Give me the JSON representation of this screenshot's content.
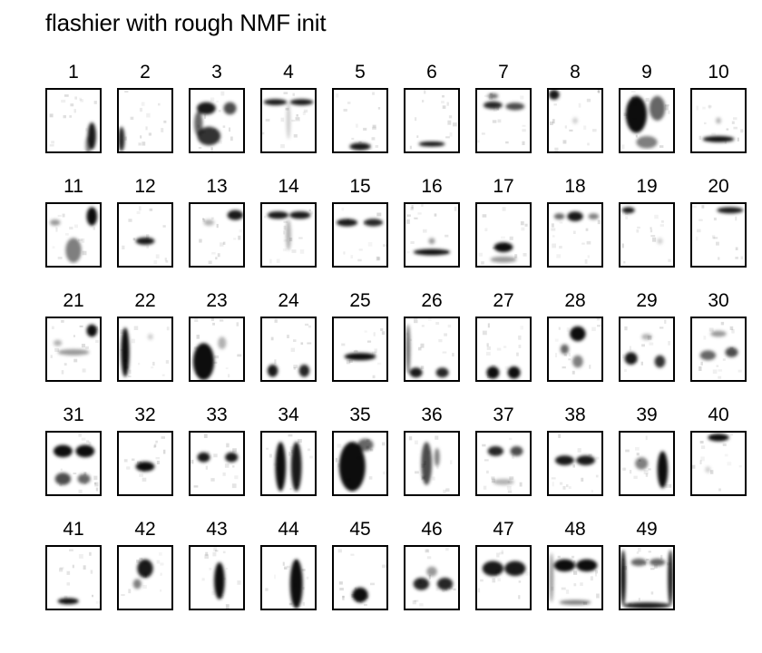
{
  "title": "flashier with rough NMF init",
  "chart_data": {
    "type": "heatmap",
    "title": "flashier with rough NMF init",
    "description_kind": "grid of factor image panels (face-like grayscale patterns)",
    "panel_labels": [
      "1",
      "2",
      "3",
      "4",
      "5",
      "6",
      "7",
      "8",
      "9",
      "10",
      "11",
      "12",
      "13",
      "14",
      "15",
      "16",
      "17",
      "18",
      "19",
      "20",
      "21",
      "22",
      "23",
      "24",
      "25",
      "26",
      "27",
      "28",
      "29",
      "30",
      "31",
      "32",
      "33",
      "34",
      "35",
      "36",
      "37",
      "38",
      "39",
      "40",
      "41",
      "42",
      "43",
      "44",
      "45",
      "46",
      "47",
      "48",
      "49"
    ],
    "grid": {
      "rows": 5,
      "columns": 10
    },
    "colormap": {
      "low": "#ffffff",
      "high": "#000000"
    },
    "panel_features": {
      "1": [
        [
          0.85,
          0.75,
          0.08,
          0.22,
          0.9
        ],
        [
          0.78,
          0.9,
          0.05,
          0.15,
          0.5
        ]
      ],
      "2": [
        [
          0.05,
          0.8,
          0.06,
          0.2,
          0.85
        ]
      ],
      "3": [
        [
          0.3,
          0.3,
          0.18,
          0.1,
          0.9
        ],
        [
          0.75,
          0.3,
          0.12,
          0.1,
          0.7
        ],
        [
          0.35,
          0.75,
          0.22,
          0.15,
          0.8
        ],
        [
          0.15,
          0.55,
          0.08,
          0.2,
          0.6
        ]
      ],
      "4": [
        [
          0.25,
          0.2,
          0.22,
          0.05,
          0.9
        ],
        [
          0.75,
          0.2,
          0.22,
          0.05,
          0.9
        ],
        [
          0.5,
          0.5,
          0.04,
          0.3,
          0.2
        ]
      ],
      "5": [
        [
          0.5,
          0.92,
          0.2,
          0.06,
          0.9
        ]
      ],
      "6": [
        [
          0.5,
          0.88,
          0.25,
          0.04,
          0.95
        ]
      ],
      "7": [
        [
          0.3,
          0.25,
          0.18,
          0.06,
          0.85
        ],
        [
          0.72,
          0.27,
          0.18,
          0.06,
          0.7
        ],
        [
          0.3,
          0.1,
          0.1,
          0.04,
          0.6
        ]
      ],
      "8": [
        [
          0.1,
          0.08,
          0.1,
          0.08,
          0.9
        ],
        [
          0.5,
          0.5,
          0.05,
          0.05,
          0.2
        ]
      ],
      "9": [
        [
          0.3,
          0.4,
          0.2,
          0.3,
          0.95
        ],
        [
          0.7,
          0.3,
          0.15,
          0.2,
          0.6
        ],
        [
          0.5,
          0.85,
          0.2,
          0.1,
          0.5
        ]
      ],
      "10": [
        [
          0.5,
          0.8,
          0.3,
          0.05,
          0.95
        ],
        [
          0.5,
          0.5,
          0.05,
          0.05,
          0.3
        ]
      ],
      "11": [
        [
          0.85,
          0.2,
          0.1,
          0.15,
          0.95
        ],
        [
          0.5,
          0.75,
          0.15,
          0.2,
          0.5
        ],
        [
          0.15,
          0.3,
          0.1,
          0.05,
          0.4
        ]
      ],
      "12": [
        [
          0.5,
          0.6,
          0.18,
          0.06,
          0.9
        ]
      ],
      "13": [
        [
          0.85,
          0.18,
          0.15,
          0.08,
          0.9
        ],
        [
          0.35,
          0.3,
          0.1,
          0.05,
          0.3
        ]
      ],
      "14": [
        [
          0.3,
          0.18,
          0.2,
          0.06,
          0.9
        ],
        [
          0.72,
          0.18,
          0.2,
          0.06,
          0.9
        ],
        [
          0.5,
          0.5,
          0.05,
          0.25,
          0.3
        ]
      ],
      "15": [
        [
          0.25,
          0.3,
          0.2,
          0.06,
          0.9
        ],
        [
          0.75,
          0.3,
          0.18,
          0.06,
          0.85
        ]
      ],
      "16": [
        [
          0.5,
          0.78,
          0.35,
          0.05,
          0.95
        ],
        [
          0.5,
          0.6,
          0.06,
          0.05,
          0.4
        ]
      ],
      "17": [
        [
          0.5,
          0.7,
          0.18,
          0.08,
          0.95
        ],
        [
          0.5,
          0.9,
          0.25,
          0.05,
          0.4
        ]
      ],
      "18": [
        [
          0.5,
          0.2,
          0.15,
          0.08,
          0.9
        ],
        [
          0.2,
          0.2,
          0.1,
          0.05,
          0.6
        ],
        [
          0.85,
          0.2,
          0.1,
          0.05,
          0.5
        ]
      ],
      "19": [
        [
          0.15,
          0.1,
          0.12,
          0.05,
          0.9
        ],
        [
          0.75,
          0.6,
          0.05,
          0.05,
          0.2
        ]
      ],
      "20": [
        [
          0.72,
          0.1,
          0.25,
          0.05,
          0.9
        ]
      ],
      "21": [
        [
          0.85,
          0.2,
          0.1,
          0.1,
          0.95
        ],
        [
          0.5,
          0.55,
          0.3,
          0.05,
          0.4
        ],
        [
          0.2,
          0.4,
          0.08,
          0.05,
          0.3
        ]
      ],
      "22": [
        [
          0.12,
          0.55,
          0.08,
          0.4,
          0.95
        ],
        [
          0.6,
          0.3,
          0.05,
          0.05,
          0.2
        ]
      ],
      "23": [
        [
          0.25,
          0.7,
          0.2,
          0.3,
          0.95
        ],
        [
          0.6,
          0.4,
          0.08,
          0.1,
          0.3
        ]
      ],
      "24": [
        [
          0.2,
          0.85,
          0.1,
          0.1,
          0.9
        ],
        [
          0.8,
          0.85,
          0.1,
          0.1,
          0.85
        ]
      ],
      "25": [
        [
          0.5,
          0.62,
          0.3,
          0.06,
          0.95
        ]
      ],
      "26": [
        [
          0.2,
          0.88,
          0.12,
          0.08,
          0.9
        ],
        [
          0.7,
          0.88,
          0.12,
          0.08,
          0.85
        ],
        [
          0.05,
          0.5,
          0.04,
          0.4,
          0.6
        ]
      ],
      "27": [
        [
          0.3,
          0.88,
          0.12,
          0.1,
          0.95
        ],
        [
          0.7,
          0.88,
          0.12,
          0.1,
          0.95
        ]
      ],
      "28": [
        [
          0.55,
          0.25,
          0.15,
          0.12,
          0.95
        ],
        [
          0.3,
          0.5,
          0.08,
          0.08,
          0.6
        ],
        [
          0.55,
          0.7,
          0.1,
          0.1,
          0.5
        ]
      ],
      "29": [
        [
          0.2,
          0.65,
          0.12,
          0.1,
          0.9
        ],
        [
          0.75,
          0.7,
          0.1,
          0.1,
          0.8
        ],
        [
          0.5,
          0.3,
          0.1,
          0.05,
          0.3
        ]
      ],
      "30": [
        [
          0.3,
          0.6,
          0.15,
          0.08,
          0.6
        ],
        [
          0.75,
          0.55,
          0.12,
          0.08,
          0.7
        ],
        [
          0.5,
          0.25,
          0.15,
          0.05,
          0.4
        ]
      ],
      "31": [
        [
          0.3,
          0.3,
          0.18,
          0.1,
          0.95
        ],
        [
          0.72,
          0.3,
          0.18,
          0.1,
          0.95
        ],
        [
          0.3,
          0.75,
          0.15,
          0.1,
          0.7
        ],
        [
          0.7,
          0.75,
          0.12,
          0.08,
          0.6
        ]
      ],
      "32": [
        [
          0.5,
          0.55,
          0.18,
          0.08,
          0.95
        ]
      ],
      "33": [
        [
          0.25,
          0.4,
          0.12,
          0.08,
          0.9
        ],
        [
          0.78,
          0.4,
          0.12,
          0.08,
          0.9
        ]
      ],
      "34": [
        [
          0.35,
          0.55,
          0.1,
          0.4,
          0.95
        ],
        [
          0.65,
          0.55,
          0.1,
          0.4,
          0.9
        ]
      ],
      "35": [
        [
          0.35,
          0.55,
          0.25,
          0.4,
          0.95
        ],
        [
          0.6,
          0.2,
          0.15,
          0.1,
          0.6
        ]
      ],
      "36": [
        [
          0.4,
          0.5,
          0.1,
          0.35,
          0.7
        ],
        [
          0.6,
          0.4,
          0.05,
          0.15,
          0.5
        ]
      ],
      "37": [
        [
          0.35,
          0.3,
          0.15,
          0.08,
          0.85
        ],
        [
          0.75,
          0.3,
          0.12,
          0.08,
          0.7
        ],
        [
          0.5,
          0.8,
          0.2,
          0.05,
          0.3
        ]
      ],
      "38": [
        [
          0.3,
          0.45,
          0.18,
          0.08,
          0.9
        ],
        [
          0.7,
          0.45,
          0.18,
          0.08,
          0.9
        ]
      ],
      "39": [
        [
          0.8,
          0.6,
          0.1,
          0.3,
          0.95
        ],
        [
          0.4,
          0.5,
          0.12,
          0.1,
          0.5
        ]
      ],
      "40": [
        [
          0.5,
          0.08,
          0.2,
          0.06,
          0.95
        ],
        [
          0.3,
          0.6,
          0.05,
          0.05,
          0.2
        ]
      ],
      "41": [
        [
          0.4,
          0.88,
          0.2,
          0.05,
          0.95
        ]
      ],
      "42": [
        [
          0.5,
          0.35,
          0.15,
          0.15,
          0.9
        ],
        [
          0.35,
          0.6,
          0.08,
          0.08,
          0.5
        ]
      ],
      "43": [
        [
          0.55,
          0.55,
          0.1,
          0.3,
          0.95
        ]
      ],
      "44": [
        [
          0.65,
          0.6,
          0.12,
          0.4,
          0.95
        ]
      ],
      "45": [
        [
          0.5,
          0.78,
          0.15,
          0.12,
          0.95
        ]
      ],
      "46": [
        [
          0.3,
          0.6,
          0.15,
          0.1,
          0.85
        ],
        [
          0.75,
          0.6,
          0.15,
          0.1,
          0.85
        ],
        [
          0.5,
          0.4,
          0.1,
          0.08,
          0.4
        ]
      ],
      "47": [
        [
          0.3,
          0.35,
          0.2,
          0.12,
          0.9
        ],
        [
          0.72,
          0.35,
          0.2,
          0.12,
          0.9
        ]
      ],
      "48": [
        [
          0.3,
          0.3,
          0.2,
          0.1,
          0.95
        ],
        [
          0.72,
          0.3,
          0.2,
          0.1,
          0.95
        ],
        [
          0.5,
          0.9,
          0.3,
          0.04,
          0.5
        ],
        [
          0.05,
          0.5,
          0.04,
          0.4,
          0.4
        ]
      ],
      "49": [
        [
          0.05,
          0.5,
          0.05,
          0.45,
          0.95
        ],
        [
          0.95,
          0.5,
          0.05,
          0.45,
          0.9
        ],
        [
          0.5,
          0.95,
          0.45,
          0.05,
          0.9
        ],
        [
          0.35,
          0.25,
          0.15,
          0.06,
          0.6
        ],
        [
          0.7,
          0.25,
          0.15,
          0.06,
          0.6
        ]
      ]
    }
  }
}
